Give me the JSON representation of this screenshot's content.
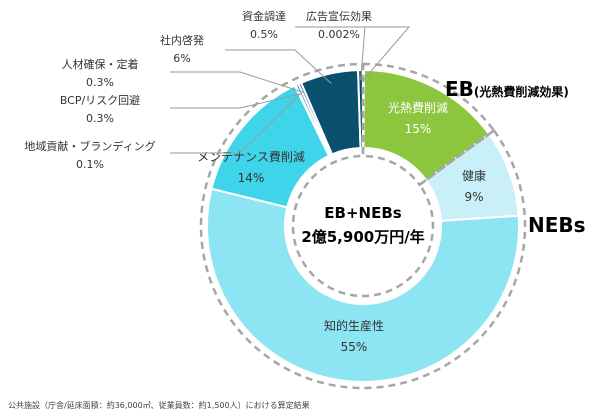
{
  "chart_data": {
    "type": "pie",
    "variant": "donut",
    "center_label": [
      "EB+NEBs",
      "2億5,900万円/年"
    ],
    "slices": [
      {
        "label": "光熱費削減",
        "value_text": "15%",
        "value": 15,
        "color": "#8cc63f"
      },
      {
        "label": "健康",
        "value_text": "9%",
        "value": 9,
        "color": "#c9f0f8"
      },
      {
        "label": "知的生産性",
        "value_text": "55%",
        "value": 55,
        "color": "#8de4f3"
      },
      {
        "label": "メンテナンス費削減",
        "value_text": "14%",
        "value": 14,
        "color": "#3ed4ea"
      },
      {
        "label": "地域貢献・ブランディング",
        "value_text": "0.1%",
        "value": 0.1,
        "color": "#1a7a9a"
      },
      {
        "label": "BCP/リスク回避",
        "value_text": "0.3%",
        "value": 0.3,
        "color": "#1a7a9a"
      },
      {
        "label": "人材確保・定着",
        "value_text": "0.3%",
        "value": 0.3,
        "color": "#1a7a9a"
      },
      {
        "label": "社内啓発",
        "value_text": "6%",
        "value": 6,
        "color": "#0b4f6e"
      },
      {
        "label": "資金調達",
        "value_text": "0.5%",
        "value": 0.5,
        "color": "#0b4f6e"
      },
      {
        "label": "広告宣伝効果",
        "value_text": "0.002%",
        "value": 0.002,
        "color": "#0b4f6e"
      }
    ],
    "group_labels": [
      {
        "main": "EB",
        "sub": "(光熱費削減効果)"
      },
      {
        "main": "NEBs",
        "sub": ""
      }
    ]
  },
  "footnote": "公共施設（庁舎/延床面積：約36,000㎡、従業員数：約1,500人）における算定結果"
}
